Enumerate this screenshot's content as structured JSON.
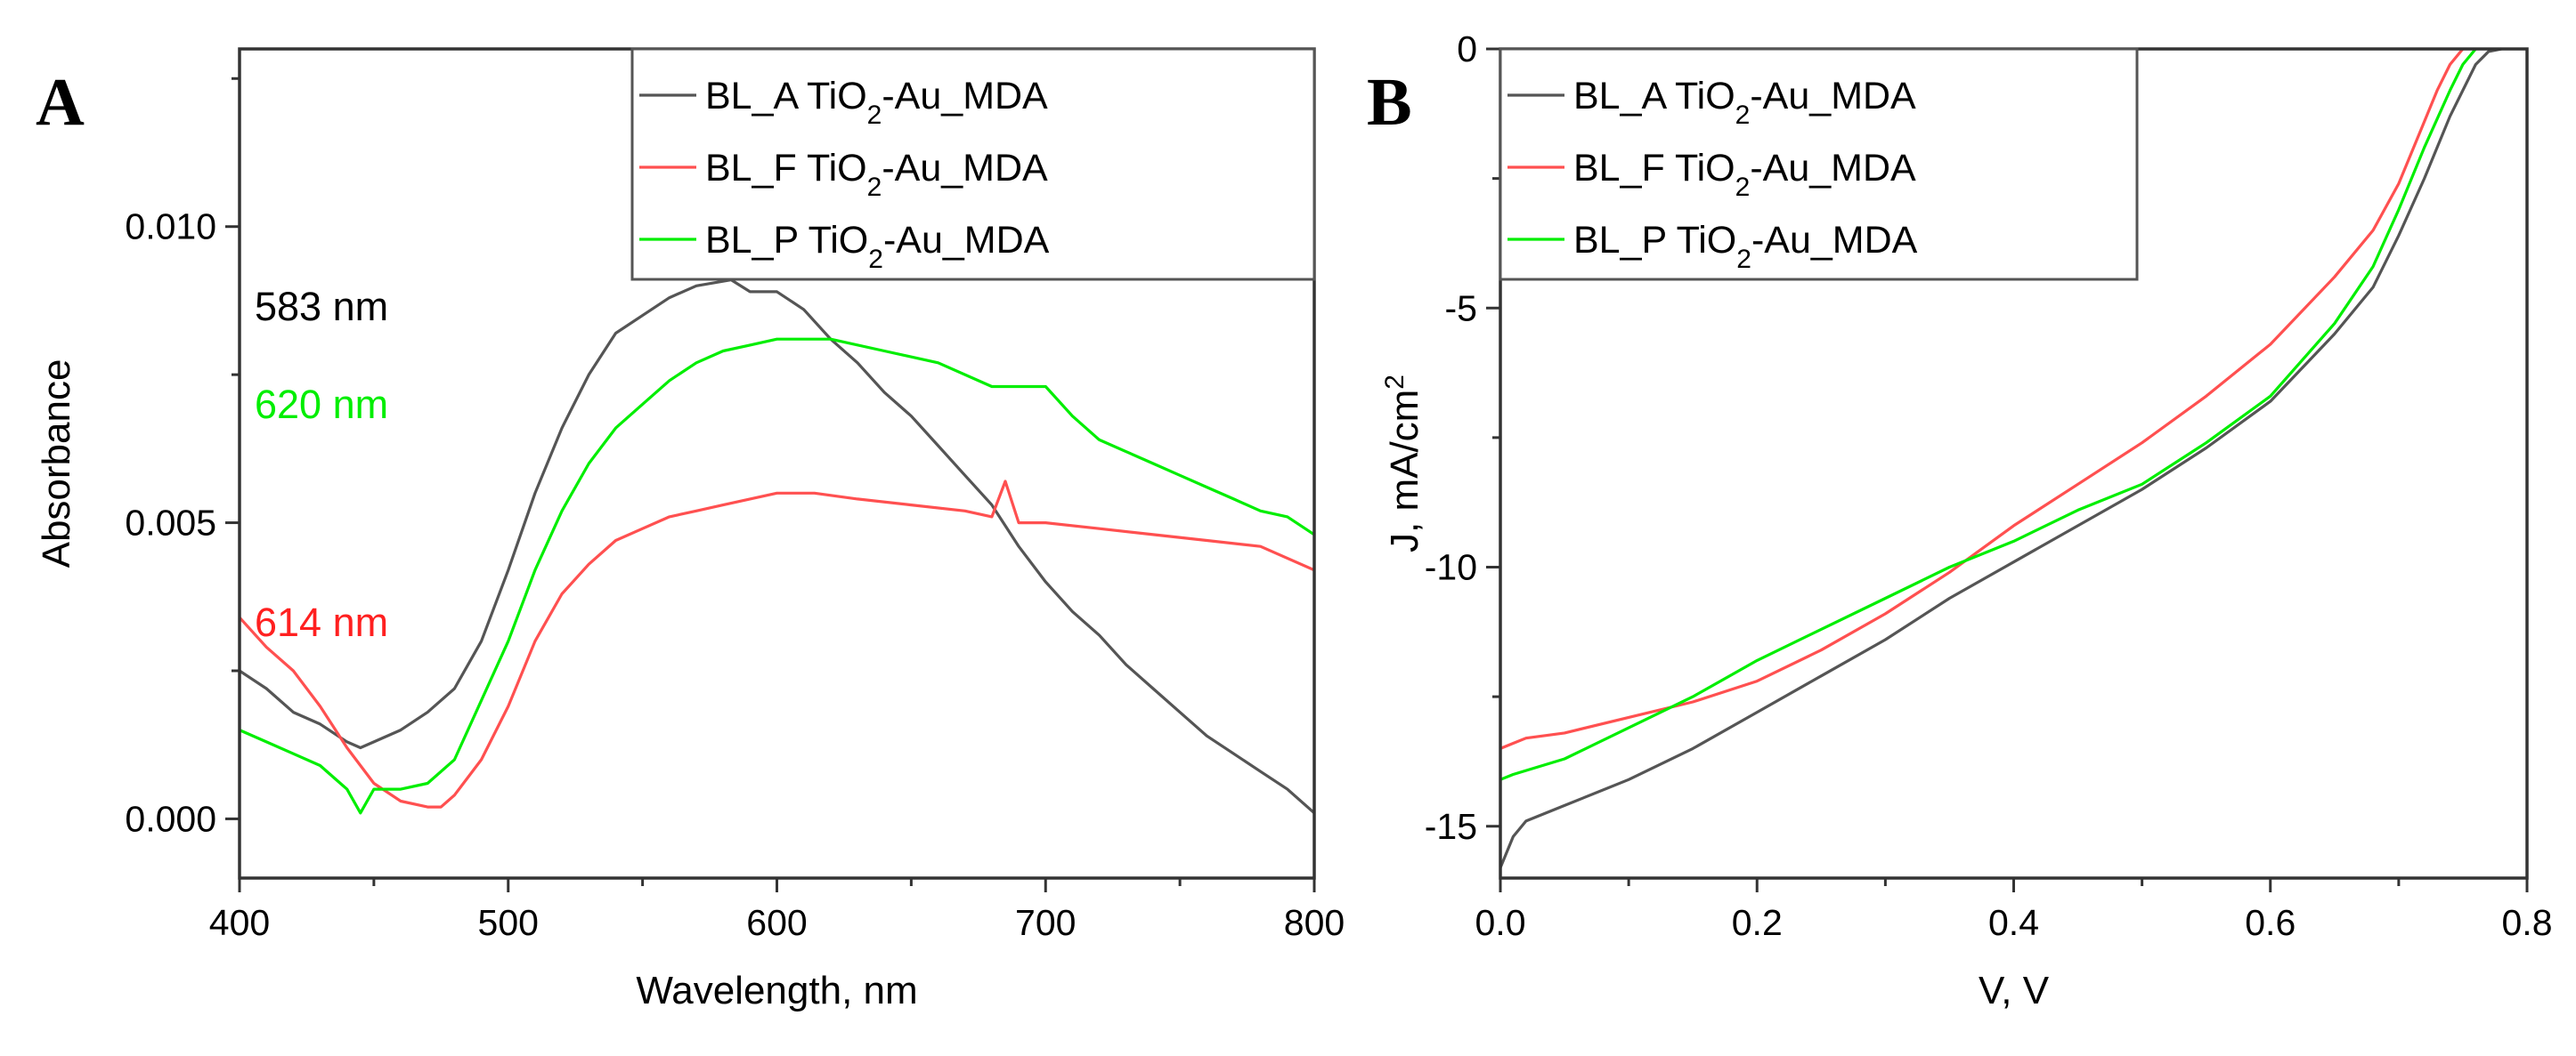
{
  "chart_data": [
    {
      "panel": "A",
      "type": "line",
      "title": "",
      "xlabel": "Wavelength, nm",
      "ylabel": "Absorbance",
      "xlim": [
        400,
        800
      ],
      "ylim": [
        -0.001,
        0.013
      ],
      "xticks": [
        400,
        500,
        600,
        700,
        800
      ],
      "xtick_labels": [
        "400",
        "500",
        "600",
        "700",
        "800"
      ],
      "yticks": [
        0.0,
        0.005,
        0.01
      ],
      "ytick_labels": [
        "0.000",
        "0.005",
        "0.010"
      ],
      "grid": false,
      "legend_position": "top-right",
      "annotations": [
        {
          "text": "583 nm",
          "color": "#000000"
        },
        {
          "text": "620 nm",
          "color": "#00ee00"
        },
        {
          "text": "614 nm",
          "color": "#ff2020"
        }
      ],
      "series": [
        {
          "name": "BL_A TiO2-Au_MDA",
          "color": "#555555",
          "x": [
            400,
            410,
            420,
            430,
            440,
            445,
            450,
            460,
            470,
            480,
            490,
            500,
            510,
            520,
            530,
            540,
            550,
            560,
            570,
            583,
            590,
            600,
            610,
            620,
            630,
            640,
            650,
            660,
            670,
            680,
            690,
            700,
            710,
            720,
            730,
            740,
            750,
            760,
            770,
            780,
            790,
            800
          ],
          "y": [
            0.0025,
            0.0022,
            0.0018,
            0.0016,
            0.0013,
            0.0012,
            0.0013,
            0.0015,
            0.0018,
            0.0022,
            0.003,
            0.0042,
            0.0055,
            0.0066,
            0.0075,
            0.0082,
            0.0085,
            0.0088,
            0.009,
            0.0091,
            0.0089,
            0.0089,
            0.0086,
            0.0081,
            0.0077,
            0.0072,
            0.0068,
            0.0063,
            0.0058,
            0.0053,
            0.0046,
            0.004,
            0.0035,
            0.0031,
            0.0026,
            0.0022,
            0.0018,
            0.0014,
            0.0011,
            0.0008,
            0.0005,
            0.0001
          ]
        },
        {
          "name": "BL_F TiO2-Au_MDA",
          "color": "#ff5050",
          "x": [
            400,
            410,
            420,
            430,
            440,
            450,
            460,
            470,
            475,
            480,
            490,
            500,
            510,
            520,
            530,
            540,
            550,
            560,
            570,
            580,
            590,
            600,
            614,
            630,
            650,
            670,
            680,
            685,
            690,
            700,
            720,
            740,
            760,
            780,
            800
          ],
          "y": [
            0.0034,
            0.0029,
            0.0025,
            0.0019,
            0.0012,
            0.0006,
            0.0003,
            0.0002,
            0.0002,
            0.0004,
            0.001,
            0.0019,
            0.003,
            0.0038,
            0.0043,
            0.0047,
            0.0049,
            0.0051,
            0.0052,
            0.0053,
            0.0054,
            0.0055,
            0.0055,
            0.0054,
            0.0053,
            0.0052,
            0.0051,
            0.0057,
            0.005,
            0.005,
            0.0049,
            0.0048,
            0.0047,
            0.0046,
            0.0042
          ]
        },
        {
          "name": "BL_P TiO2-Au_MDA",
          "color": "#00ee00",
          "x": [
            400,
            410,
            420,
            430,
            440,
            445,
            450,
            460,
            470,
            480,
            490,
            500,
            510,
            520,
            530,
            540,
            550,
            560,
            570,
            580,
            590,
            600,
            620,
            640,
            660,
            680,
            690,
            700,
            710,
            720,
            730,
            740,
            750,
            760,
            770,
            780,
            790,
            800
          ],
          "y": [
            0.0015,
            0.0013,
            0.0011,
            0.0009,
            0.0005,
            0.0001,
            0.0005,
            0.0005,
            0.0006,
            0.001,
            0.002,
            0.003,
            0.0042,
            0.0052,
            0.006,
            0.0066,
            0.007,
            0.0074,
            0.0077,
            0.0079,
            0.008,
            0.0081,
            0.0081,
            0.0079,
            0.0077,
            0.0073,
            0.0073,
            0.0073,
            0.0068,
            0.0064,
            0.0062,
            0.006,
            0.0058,
            0.0056,
            0.0054,
            0.0052,
            0.0051,
            0.0048
          ]
        }
      ]
    },
    {
      "panel": "B",
      "type": "line",
      "title": "",
      "xlabel": "V, V",
      "ylabel": "J, mA/cm2",
      "xlim": [
        0.0,
        0.8
      ],
      "ylim": [
        -16,
        0
      ],
      "xticks": [
        0.0,
        0.2,
        0.4,
        0.6,
        0.8
      ],
      "xtick_labels": [
        "0.0",
        "0.2",
        "0.4",
        "0.6",
        "0.8"
      ],
      "yticks": [
        0,
        -5,
        -10,
        -15
      ],
      "ytick_labels": [
        "0",
        "-5",
        "-10",
        "-15"
      ],
      "grid": false,
      "legend_position": "top-left",
      "series": [
        {
          "name": "BL_A TiO2-Au_MDA",
          "color": "#555555",
          "x": [
            0.0,
            0.01,
            0.02,
            0.05,
            0.1,
            0.15,
            0.2,
            0.25,
            0.3,
            0.35,
            0.4,
            0.45,
            0.5,
            0.55,
            0.6,
            0.65,
            0.68,
            0.7,
            0.72,
            0.74,
            0.76,
            0.77,
            0.78
          ],
          "y": [
            -15.8,
            -15.2,
            -14.9,
            -14.6,
            -14.1,
            -13.5,
            -12.8,
            -12.1,
            -11.4,
            -10.6,
            -9.9,
            -9.2,
            -8.5,
            -7.7,
            -6.8,
            -5.5,
            -4.6,
            -3.6,
            -2.5,
            -1.3,
            -0.3,
            -0.05,
            0.0
          ]
        },
        {
          "name": "BL_F TiO2-Au_MDA",
          "color": "#ff5050",
          "x": [
            0.0,
            0.01,
            0.02,
            0.05,
            0.1,
            0.15,
            0.2,
            0.25,
            0.3,
            0.35,
            0.4,
            0.45,
            0.5,
            0.55,
            0.6,
            0.65,
            0.68,
            0.7,
            0.72,
            0.73,
            0.74,
            0.75
          ],
          "y": [
            -13.5,
            -13.4,
            -13.3,
            -13.2,
            -12.9,
            -12.6,
            -12.2,
            -11.6,
            -10.9,
            -10.1,
            -9.2,
            -8.4,
            -7.6,
            -6.7,
            -5.7,
            -4.4,
            -3.5,
            -2.6,
            -1.4,
            -0.8,
            -0.3,
            0.0
          ]
        },
        {
          "name": "BL_P TiO2-Au_MDA",
          "color": "#00ee00",
          "x": [
            0.0,
            0.01,
            0.05,
            0.1,
            0.15,
            0.2,
            0.25,
            0.3,
            0.35,
            0.4,
            0.45,
            0.5,
            0.55,
            0.6,
            0.65,
            0.68,
            0.7,
            0.72,
            0.74,
            0.75,
            0.76
          ],
          "y": [
            -14.1,
            -14.0,
            -13.7,
            -13.1,
            -12.5,
            -11.8,
            -11.2,
            -10.6,
            -10.0,
            -9.5,
            -8.9,
            -8.4,
            -7.6,
            -6.7,
            -5.3,
            -4.2,
            -3.1,
            -1.9,
            -0.8,
            -0.3,
            0.0
          ]
        }
      ]
    }
  ]
}
